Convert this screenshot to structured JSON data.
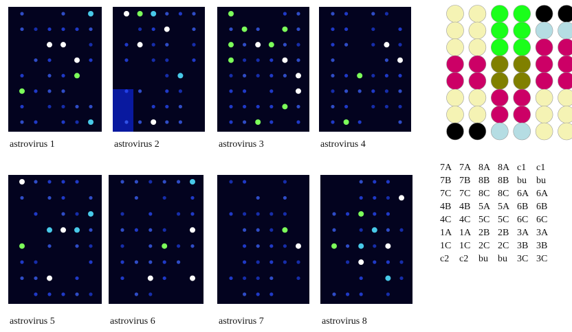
{
  "panels": [
    {
      "label": "astrovirus 1"
    },
    {
      "label": "astrovirus 2"
    },
    {
      "label": "astrovirus 3"
    },
    {
      "label": "astrovirus 4"
    },
    {
      "label": "astrovirus 5"
    },
    {
      "label": "astrovirus 6"
    },
    {
      "label": "astrovirus 7"
    },
    {
      "label": "astrovirus 8"
    }
  ],
  "layout_key": {
    "rows": [
      [
        "7A",
        "7A",
        "8A",
        "8A",
        "c1",
        "c1"
      ],
      [
        "7B",
        "7B",
        "8B",
        "8B",
        "bu",
        "bu"
      ],
      [
        "7C",
        "7C",
        "8C",
        "8C",
        "6A",
        "6A"
      ],
      [
        "4B",
        "4B",
        "5A",
        "5A",
        "6B",
        "6B"
      ],
      [
        "4C",
        "4C",
        "5C",
        "5C",
        "6C",
        "6C"
      ],
      [
        "1A",
        "1A",
        "2B",
        "2B",
        "3A",
        "3A"
      ],
      [
        "1C",
        "1C",
        "2C",
        "2C",
        "3B",
        "3B"
      ],
      [
        "c2",
        "c2",
        "bu",
        "bu",
        "3C",
        "3C"
      ]
    ]
  }
}
